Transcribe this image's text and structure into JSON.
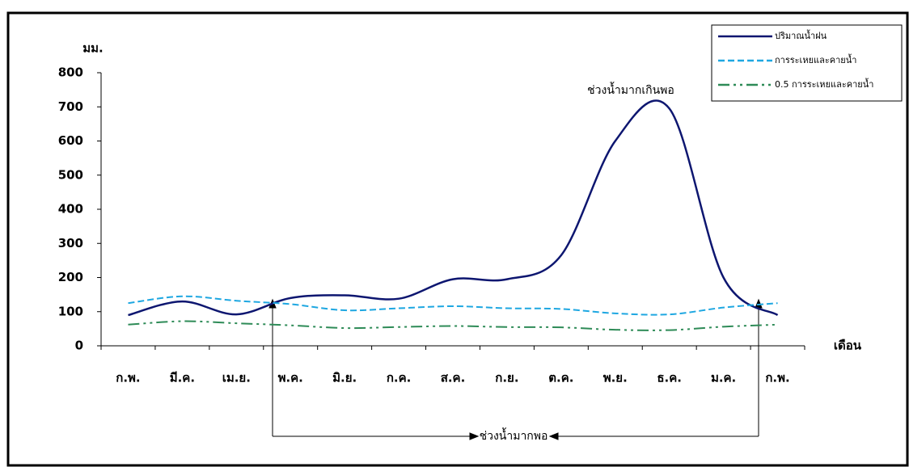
{
  "chart_data": {
    "type": "line",
    "y_label": "มม.",
    "x_label": "เดือน",
    "annotations": [
      "ช่วงน้ำมากเกินพอ",
      "ช่วงน้ำมากพอ"
    ],
    "categories": [
      "ก.พ.",
      "มี.ค.",
      "เม.ย.",
      "พ.ค.",
      "มิ.ย.",
      "ก.ค.",
      "ส.ค.",
      "ก.ย.",
      "ต.ค.",
      "พ.ย.",
      "ธ.ค.",
      "ม.ค.",
      "ก.พ."
    ],
    "series": [
      {
        "name": "ปริมาณน้ำฝน",
        "color": "#0d1670",
        "dash": "none",
        "values": [
          90,
          130,
          92,
          140,
          148,
          138,
          195,
          195,
          265,
          600,
          695,
          200,
          90
        ]
      },
      {
        "name": "การระเหยและคายน้ำ",
        "color": "#1ea7e1",
        "dash": "8 4",
        "values": [
          125,
          145,
          132,
          122,
          104,
          110,
          116,
          110,
          108,
          95,
          92,
          112,
          125
        ]
      },
      {
        "name": "0.5 การระเหยและคายน้ำ",
        "color": "#2e8b57",
        "dash": "14 5 3 5 3 5",
        "values": [
          62,
          72,
          66,
          60,
          52,
          55,
          58,
          55,
          54,
          47,
          46,
          56,
          62
        ]
      }
    ],
    "ylim": [
      0,
      800
    ],
    "yticks": [
      0,
      100,
      200,
      300,
      400,
      500,
      600,
      700,
      800
    ]
  }
}
